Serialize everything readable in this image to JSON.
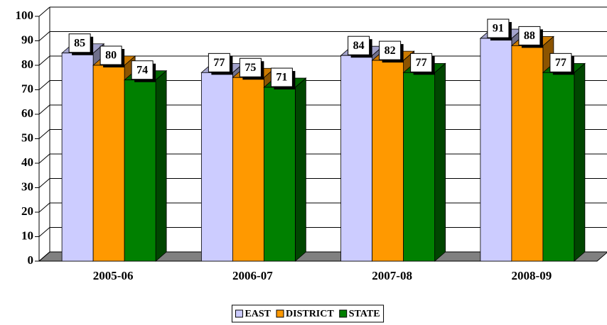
{
  "chart_data": {
    "type": "bar3d",
    "categories": [
      "2005-06",
      "2006-07",
      "2007-08",
      "2008-09"
    ],
    "series": [
      {
        "name": "EAST",
        "color": "#ccccff",
        "values": [
          85,
          77,
          84,
          91
        ]
      },
      {
        "name": "DISTRICT",
        "color": "#ff9900",
        "values": [
          80,
          75,
          82,
          88
        ]
      },
      {
        "name": "STATE",
        "color": "#008000",
        "values": [
          74,
          71,
          77,
          77
        ]
      }
    ],
    "ylim": [
      0,
      100
    ],
    "yticks": [
      0,
      10,
      20,
      30,
      40,
      50,
      60,
      70,
      80,
      90,
      100
    ],
    "grid": true,
    "legend": "bottom"
  }
}
